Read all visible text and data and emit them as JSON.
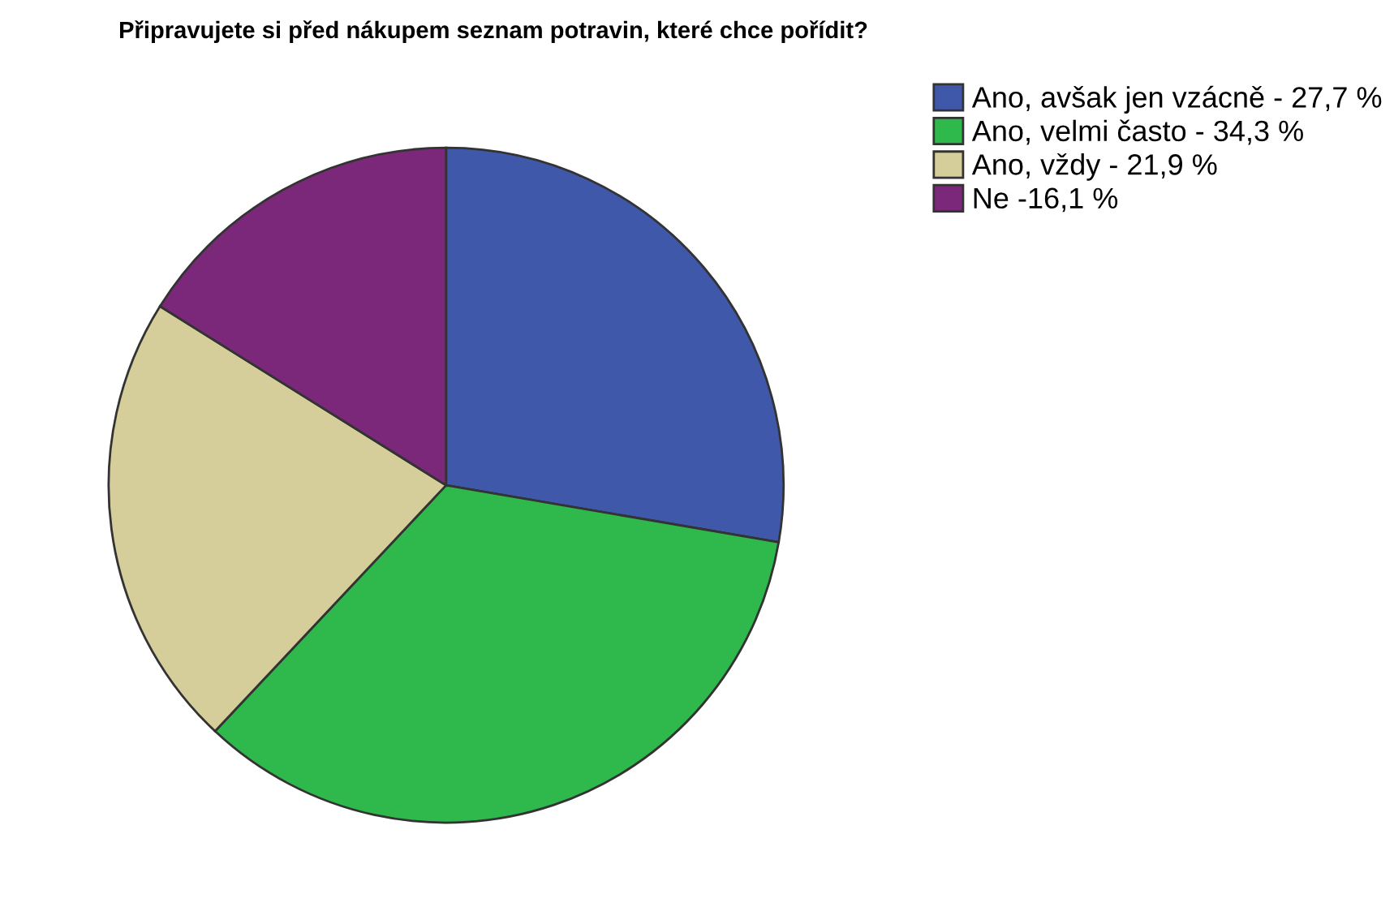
{
  "chart_data": {
    "type": "pie",
    "title": "Připravujete si před nákupem seznam potravin, které chce pořídit?",
    "categories": [
      "Ano, avšak jen vzácně - 27,7 %",
      "Ano, velmi často - 34,3 %",
      "Ano, vždy - 21,9 %",
      "Ne -16,1 %"
    ],
    "values": [
      27.7,
      34.3,
      21.9,
      16.1
    ],
    "colors": [
      "#3f58aa",
      "#2fb84c",
      "#d5cd9a",
      "#7c287a"
    ],
    "legend": "top right"
  }
}
